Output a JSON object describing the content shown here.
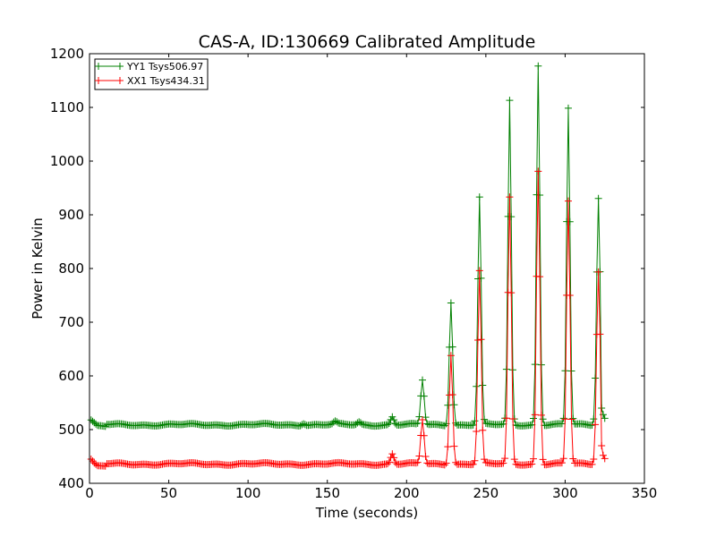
{
  "chart_data": {
    "type": "line",
    "title": "CAS-A, ID:130669 Calibrated Amplitude",
    "xlabel": "Time (seconds)",
    "ylabel": "Power in Kelvin",
    "xlim": [
      0,
      350
    ],
    "ylim": [
      400,
      1200
    ],
    "xticks": [
      0,
      50,
      100,
      150,
      200,
      250,
      300,
      350
    ],
    "yticks": [
      400,
      500,
      600,
      700,
      800,
      900,
      1000,
      1100,
      1200
    ],
    "grid": false,
    "legend_position": "top-left",
    "marker": "plus",
    "x_range": [
      1,
      325
    ],
    "x_step": 1,
    "series": [
      {
        "name": "YY1 Tsys506.97",
        "color": "#008000",
        "baseline": 509,
        "start": [
          [
            1,
            518
          ],
          [
            3,
            513
          ],
          [
            5,
            508
          ],
          [
            10,
            506
          ]
        ],
        "end": [
          [
            323,
            540
          ],
          [
            324,
            528
          ],
          [
            325,
            521
          ]
        ],
        "bumps": [
          [
            135,
            513,
            1.5
          ],
          [
            155,
            514,
            1.5
          ],
          [
            170,
            514,
            1.5
          ],
          [
            191,
            524,
            1.5
          ]
        ],
        "peaks": [
          [
            210,
            592,
            1.5
          ],
          [
            228,
            738,
            1.5
          ],
          [
            246,
            932,
            1.5
          ],
          [
            265,
            1112,
            1.5
          ],
          [
            283,
            1178,
            1.5
          ],
          [
            302,
            1098,
            1.5
          ],
          [
            321,
            932,
            1.6
          ]
        ]
      },
      {
        "name": "XX1 Tsys434.31",
        "color": "#ff0000",
        "baseline": 436,
        "start": [
          [
            1,
            445
          ],
          [
            3,
            438
          ],
          [
            5,
            433
          ],
          [
            10,
            432
          ]
        ],
        "end": [
          [
            323,
            470
          ],
          [
            324,
            452
          ],
          [
            325,
            446
          ]
        ],
        "bumps": [
          [
            191,
            455,
            1.5
          ]
        ],
        "peaks": [
          [
            210,
            518,
            1.5
          ],
          [
            228,
            640,
            1.5
          ],
          [
            246,
            795,
            1.5
          ],
          [
            265,
            932,
            1.5
          ],
          [
            283,
            982,
            1.5
          ],
          [
            302,
            925,
            1.5
          ],
          [
            321,
            795,
            1.6
          ]
        ]
      }
    ]
  }
}
